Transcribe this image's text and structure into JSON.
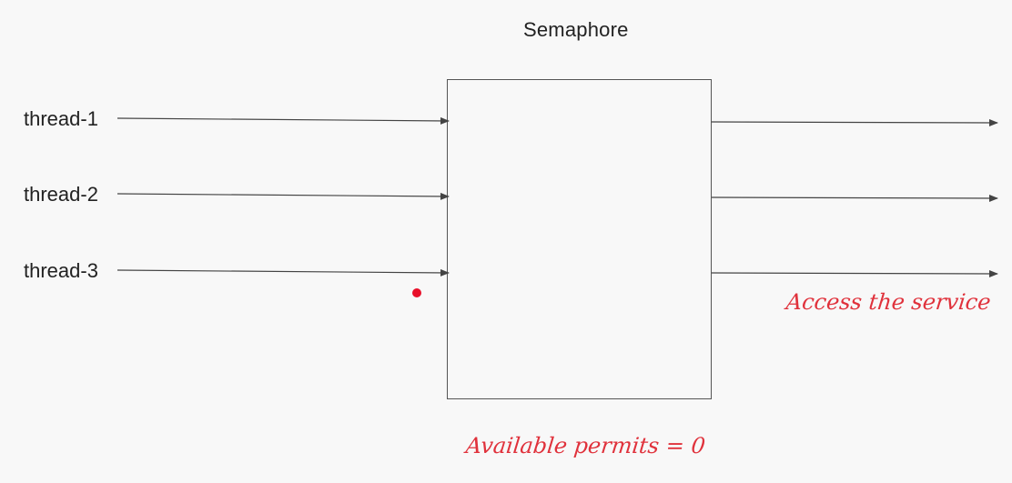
{
  "title": "Semaphore",
  "threads": [
    {
      "label": "thread-1"
    },
    {
      "label": "thread-2"
    },
    {
      "label": "thread-3"
    }
  ],
  "annotations": {
    "output": "Access the service",
    "permits": "Available permits = 0"
  },
  "colors": {
    "background": "#f8f8f8",
    "line": "#444444",
    "annotation": "#e0323c",
    "pointer_dot": "#e8102a"
  }
}
